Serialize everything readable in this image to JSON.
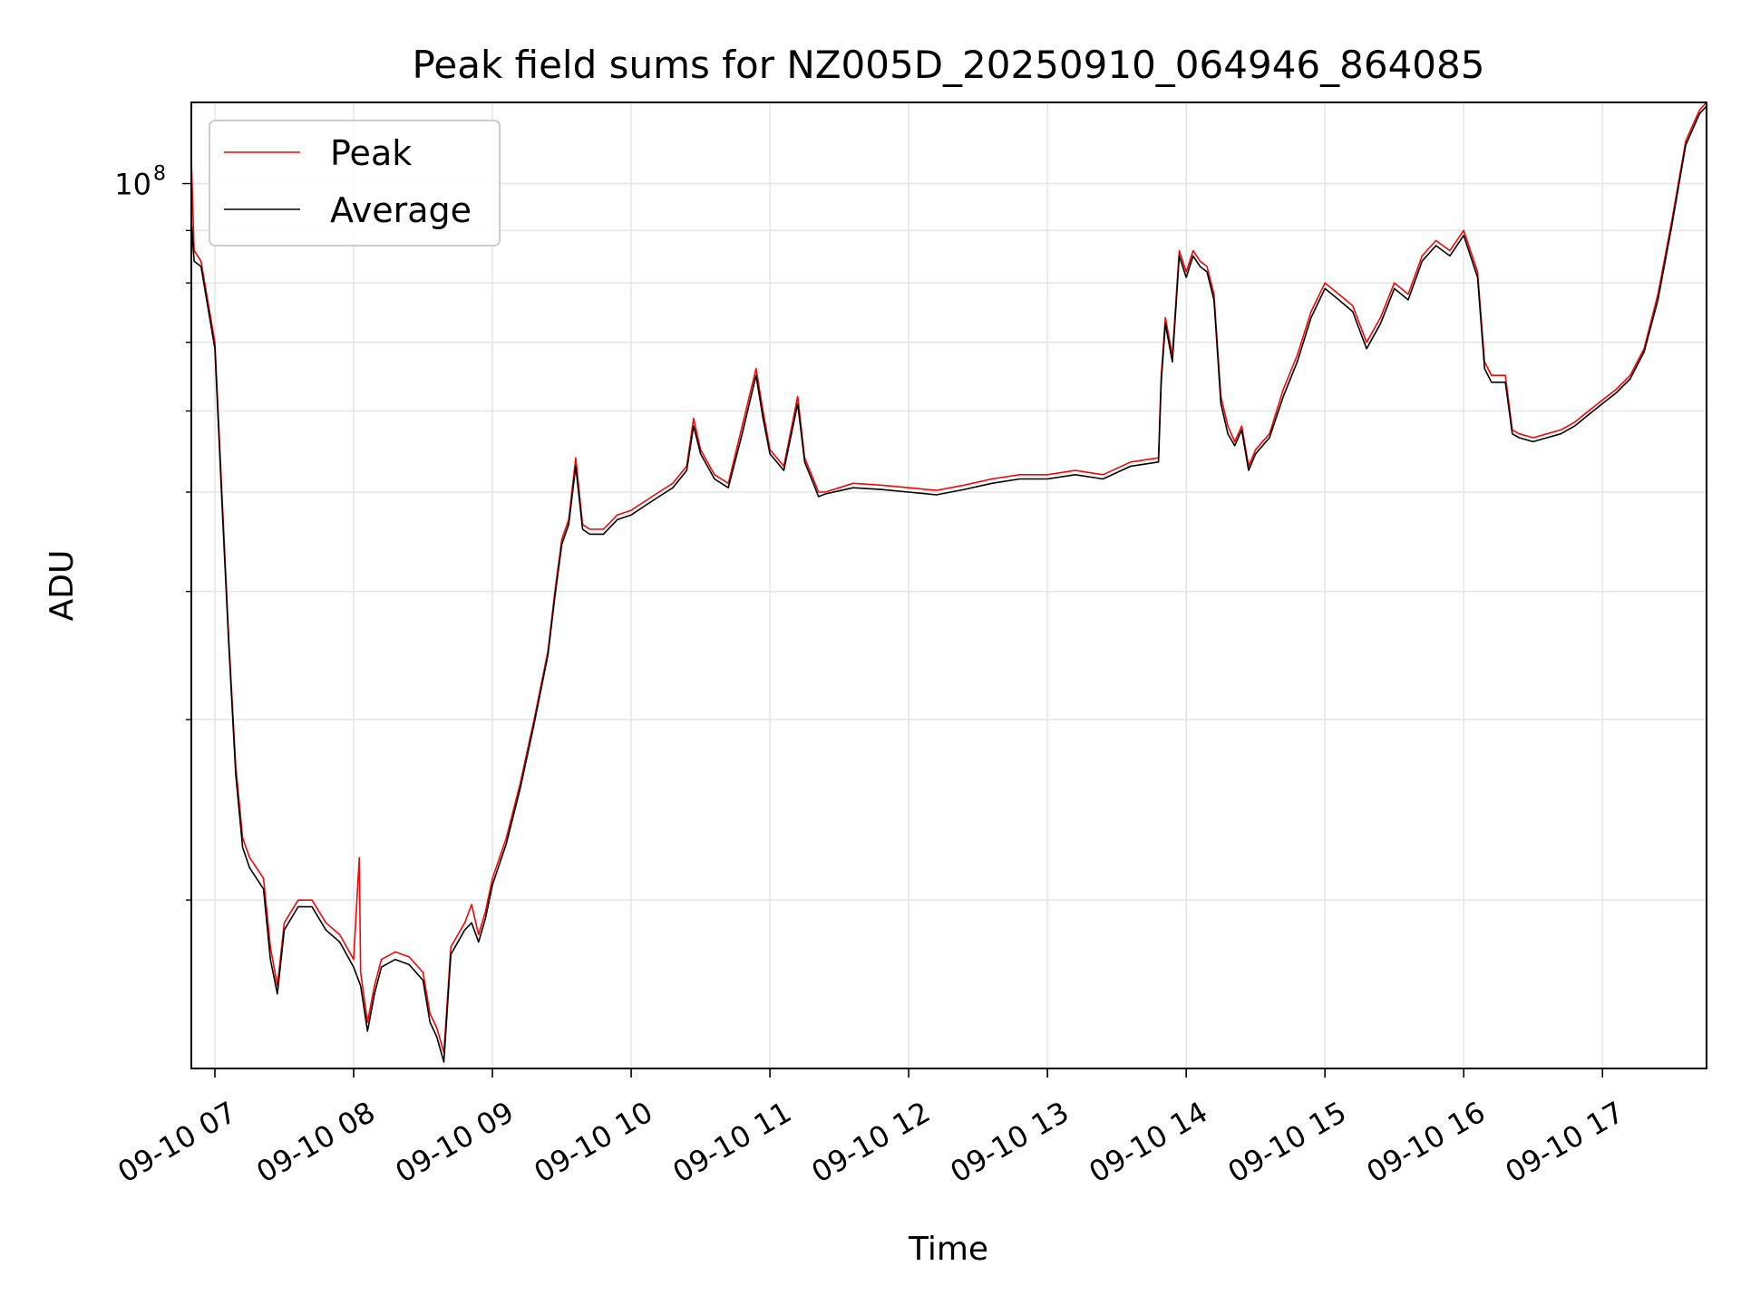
{
  "chart_data": {
    "type": "line",
    "title": "Peak field sums for NZ005D_20250910_064946_864085",
    "xlabel": "Time",
    "ylabel": "ADU",
    "y_scale": "log",
    "ylim": [
      13700000,
      120000000
    ],
    "y_ticks": [
      {
        "value": 100000000,
        "base": "10",
        "exp": "8"
      }
    ],
    "x_unit": "hours on 2025-09-10",
    "xlim": [
      6.83,
      17.75
    ],
    "x_ticks": [
      {
        "value": 7,
        "label": "09-10 07"
      },
      {
        "value": 8,
        "label": "09-10 08"
      },
      {
        "value": 9,
        "label": "09-10 09"
      },
      {
        "value": 10,
        "label": "09-10 10"
      },
      {
        "value": 11,
        "label": "09-10 11"
      },
      {
        "value": 12,
        "label": "09-10 12"
      },
      {
        "value": 13,
        "label": "09-10 13"
      },
      {
        "value": 14,
        "label": "09-10 14"
      },
      {
        "value": 15,
        "label": "09-10 15"
      },
      {
        "value": 16,
        "label": "09-10 16"
      },
      {
        "value": 17,
        "label": "09-10 17"
      }
    ],
    "grid": true,
    "legend_position": "upper-left",
    "series": [
      {
        "name": "Peak",
        "color": "#ff0000",
        "points": [
          [
            6.83,
            106000000
          ],
          [
            6.85,
            86000000
          ],
          [
            6.9,
            84000000
          ],
          [
            7.0,
            70000000
          ],
          [
            7.05,
            50000000
          ],
          [
            7.1,
            36000000
          ],
          [
            7.15,
            27000000
          ],
          [
            7.2,
            23000000
          ],
          [
            7.25,
            22000000
          ],
          [
            7.3,
            21500000
          ],
          [
            7.35,
            21000000
          ],
          [
            7.4,
            18000000
          ],
          [
            7.45,
            16500000
          ],
          [
            7.5,
            19000000
          ],
          [
            7.6,
            20000000
          ],
          [
            7.7,
            20000000
          ],
          [
            7.8,
            19000000
          ],
          [
            7.9,
            18500000
          ],
          [
            8.0,
            17500000
          ],
          [
            8.04,
            22000000
          ],
          [
            8.05,
            17000000
          ],
          [
            8.1,
            15200000
          ],
          [
            8.15,
            16500000
          ],
          [
            8.2,
            17500000
          ],
          [
            8.3,
            17800000
          ],
          [
            8.4,
            17600000
          ],
          [
            8.5,
            17000000
          ],
          [
            8.55,
            15500000
          ],
          [
            8.6,
            15000000
          ],
          [
            8.65,
            14200000
          ],
          [
            8.7,
            18000000
          ],
          [
            8.8,
            19000000
          ],
          [
            8.85,
            19800000
          ],
          [
            8.9,
            18500000
          ],
          [
            8.95,
            19500000
          ],
          [
            9.0,
            21000000
          ],
          [
            9.1,
            23000000
          ],
          [
            9.2,
            26000000
          ],
          [
            9.3,
            30000000
          ],
          [
            9.4,
            35000000
          ],
          [
            9.45,
            40000000
          ],
          [
            9.5,
            45000000
          ],
          [
            9.55,
            47000000
          ],
          [
            9.6,
            54000000
          ],
          [
            9.65,
            46500000
          ],
          [
            9.7,
            46000000
          ],
          [
            9.8,
            46000000
          ],
          [
            9.9,
            47500000
          ],
          [
            10.0,
            48000000
          ],
          [
            10.1,
            49000000
          ],
          [
            10.2,
            50000000
          ],
          [
            10.3,
            51000000
          ],
          [
            10.4,
            53000000
          ],
          [
            10.45,
            59000000
          ],
          [
            10.5,
            55000000
          ],
          [
            10.6,
            52000000
          ],
          [
            10.7,
            51000000
          ],
          [
            10.8,
            58000000
          ],
          [
            10.9,
            66000000
          ],
          [
            10.95,
            60000000
          ],
          [
            11.0,
            55000000
          ],
          [
            11.1,
            53000000
          ],
          [
            11.2,
            62000000
          ],
          [
            11.25,
            54000000
          ],
          [
            11.3,
            52000000
          ],
          [
            11.35,
            50000000
          ],
          [
            11.4,
            50000000
          ],
          [
            11.6,
            51000000
          ],
          [
            11.8,
            50800000
          ],
          [
            12.0,
            50500000
          ],
          [
            12.2,
            50200000
          ],
          [
            12.4,
            50800000
          ],
          [
            12.6,
            51500000
          ],
          [
            12.8,
            52000000
          ],
          [
            13.0,
            52000000
          ],
          [
            13.2,
            52500000
          ],
          [
            13.4,
            52000000
          ],
          [
            13.6,
            53500000
          ],
          [
            13.8,
            54000000
          ],
          [
            13.82,
            65000000
          ],
          [
            13.85,
            74000000
          ],
          [
            13.9,
            68000000
          ],
          [
            13.95,
            86000000
          ],
          [
            14.0,
            82000000
          ],
          [
            14.05,
            86000000
          ],
          [
            14.1,
            84000000
          ],
          [
            14.15,
            83000000
          ],
          [
            14.2,
            78000000
          ],
          [
            14.25,
            62000000
          ],
          [
            14.3,
            58000000
          ],
          [
            14.35,
            56000000
          ],
          [
            14.4,
            58000000
          ],
          [
            14.45,
            53000000
          ],
          [
            14.5,
            55000000
          ],
          [
            14.6,
            57000000
          ],
          [
            14.7,
            63000000
          ],
          [
            14.8,
            68000000
          ],
          [
            14.9,
            75000000
          ],
          [
            15.0,
            80000000
          ],
          [
            15.1,
            78000000
          ],
          [
            15.2,
            76000000
          ],
          [
            15.3,
            70000000
          ],
          [
            15.4,
            74000000
          ],
          [
            15.5,
            80000000
          ],
          [
            15.6,
            78000000
          ],
          [
            15.7,
            85000000
          ],
          [
            15.8,
            88000000
          ],
          [
            15.9,
            86000000
          ],
          [
            16.0,
            90000000
          ],
          [
            16.1,
            82000000
          ],
          [
            16.15,
            67000000
          ],
          [
            16.2,
            65000000
          ],
          [
            16.3,
            65000000
          ],
          [
            16.35,
            57500000
          ],
          [
            16.4,
            57000000
          ],
          [
            16.5,
            56500000
          ],
          [
            16.6,
            57000000
          ],
          [
            16.7,
            57500000
          ],
          [
            16.8,
            58500000
          ],
          [
            16.9,
            60000000
          ],
          [
            17.0,
            61500000
          ],
          [
            17.1,
            63000000
          ],
          [
            17.2,
            65000000
          ],
          [
            17.3,
            69000000
          ],
          [
            17.4,
            78000000
          ],
          [
            17.5,
            92000000
          ],
          [
            17.6,
            110000000
          ],
          [
            17.7,
            118000000
          ],
          [
            17.75,
            120000000
          ]
        ]
      },
      {
        "name": "Average",
        "color": "#000000",
        "points": [
          [
            6.83,
            92000000
          ],
          [
            6.85,
            84000000
          ],
          [
            6.9,
            83000000
          ],
          [
            7.0,
            69000000
          ],
          [
            7.05,
            49000000
          ],
          [
            7.1,
            35500000
          ],
          [
            7.15,
            26500000
          ],
          [
            7.2,
            22500000
          ],
          [
            7.25,
            21500000
          ],
          [
            7.3,
            21000000
          ],
          [
            7.35,
            20500000
          ],
          [
            7.4,
            17500000
          ],
          [
            7.45,
            16200000
          ],
          [
            7.5,
            18700000
          ],
          [
            7.6,
            19700000
          ],
          [
            7.7,
            19700000
          ],
          [
            7.8,
            18700000
          ],
          [
            7.9,
            18200000
          ],
          [
            8.0,
            17200000
          ],
          [
            8.05,
            16500000
          ],
          [
            8.1,
            14900000
          ],
          [
            8.15,
            16200000
          ],
          [
            8.2,
            17200000
          ],
          [
            8.3,
            17500000
          ],
          [
            8.4,
            17300000
          ],
          [
            8.5,
            16700000
          ],
          [
            8.55,
            15200000
          ],
          [
            8.6,
            14700000
          ],
          [
            8.65,
            13900000
          ],
          [
            8.7,
            17700000
          ],
          [
            8.8,
            18700000
          ],
          [
            8.85,
            19000000
          ],
          [
            8.9,
            18200000
          ],
          [
            8.95,
            19200000
          ],
          [
            9.0,
            20700000
          ],
          [
            9.1,
            22700000
          ],
          [
            9.2,
            25700000
          ],
          [
            9.3,
            29700000
          ],
          [
            9.4,
            34700000
          ],
          [
            9.45,
            39500000
          ],
          [
            9.5,
            44500000
          ],
          [
            9.55,
            46500000
          ],
          [
            9.6,
            53000000
          ],
          [
            9.65,
            46000000
          ],
          [
            9.7,
            45500000
          ],
          [
            9.8,
            45500000
          ],
          [
            9.9,
            47000000
          ],
          [
            10.0,
            47500000
          ],
          [
            10.1,
            48500000
          ],
          [
            10.2,
            49500000
          ],
          [
            10.3,
            50500000
          ],
          [
            10.4,
            52500000
          ],
          [
            10.45,
            58000000
          ],
          [
            10.5,
            54500000
          ],
          [
            10.6,
            51500000
          ],
          [
            10.7,
            50500000
          ],
          [
            10.8,
            57000000
          ],
          [
            10.9,
            65000000
          ],
          [
            10.95,
            59000000
          ],
          [
            11.0,
            54500000
          ],
          [
            11.1,
            52500000
          ],
          [
            11.2,
            61000000
          ],
          [
            11.25,
            53500000
          ],
          [
            11.3,
            51500000
          ],
          [
            11.35,
            49500000
          ],
          [
            11.4,
            49800000
          ],
          [
            11.6,
            50500000
          ],
          [
            11.8,
            50300000
          ],
          [
            12.0,
            50000000
          ],
          [
            12.2,
            49700000
          ],
          [
            12.4,
            50300000
          ],
          [
            12.6,
            51000000
          ],
          [
            12.8,
            51500000
          ],
          [
            13.0,
            51500000
          ],
          [
            13.2,
            52000000
          ],
          [
            13.4,
            51500000
          ],
          [
            13.6,
            53000000
          ],
          [
            13.8,
            53500000
          ],
          [
            13.82,
            64000000
          ],
          [
            13.85,
            73000000
          ],
          [
            13.9,
            67000000
          ],
          [
            13.95,
            85000000
          ],
          [
            14.0,
            81000000
          ],
          [
            14.05,
            85000000
          ],
          [
            14.1,
            83000000
          ],
          [
            14.15,
            82000000
          ],
          [
            14.2,
            77000000
          ],
          [
            14.25,
            61000000
          ],
          [
            14.3,
            57000000
          ],
          [
            14.35,
            55500000
          ],
          [
            14.4,
            57500000
          ],
          [
            14.45,
            52500000
          ],
          [
            14.5,
            54500000
          ],
          [
            14.6,
            56500000
          ],
          [
            14.7,
            62000000
          ],
          [
            14.8,
            67000000
          ],
          [
            14.9,
            74000000
          ],
          [
            15.0,
            79000000
          ],
          [
            15.1,
            77000000
          ],
          [
            15.2,
            75000000
          ],
          [
            15.3,
            69000000
          ],
          [
            15.4,
            73000000
          ],
          [
            15.5,
            79000000
          ],
          [
            15.6,
            77000000
          ],
          [
            15.7,
            84000000
          ],
          [
            15.8,
            87000000
          ],
          [
            15.9,
            85000000
          ],
          [
            16.0,
            89000000
          ],
          [
            16.1,
            81000000
          ],
          [
            16.15,
            66000000
          ],
          [
            16.2,
            64000000
          ],
          [
            16.3,
            64000000
          ],
          [
            16.35,
            57000000
          ],
          [
            16.4,
            56500000
          ],
          [
            16.5,
            56000000
          ],
          [
            16.6,
            56500000
          ],
          [
            16.7,
            57000000
          ],
          [
            16.8,
            58000000
          ],
          [
            16.9,
            59500000
          ],
          [
            17.0,
            61000000
          ],
          [
            17.1,
            62500000
          ],
          [
            17.2,
            64500000
          ],
          [
            17.3,
            68500000
          ],
          [
            17.4,
            77000000
          ],
          [
            17.5,
            91000000
          ],
          [
            17.6,
            109000000
          ],
          [
            17.7,
            117000000
          ],
          [
            17.75,
            119000000
          ]
        ]
      }
    ]
  }
}
